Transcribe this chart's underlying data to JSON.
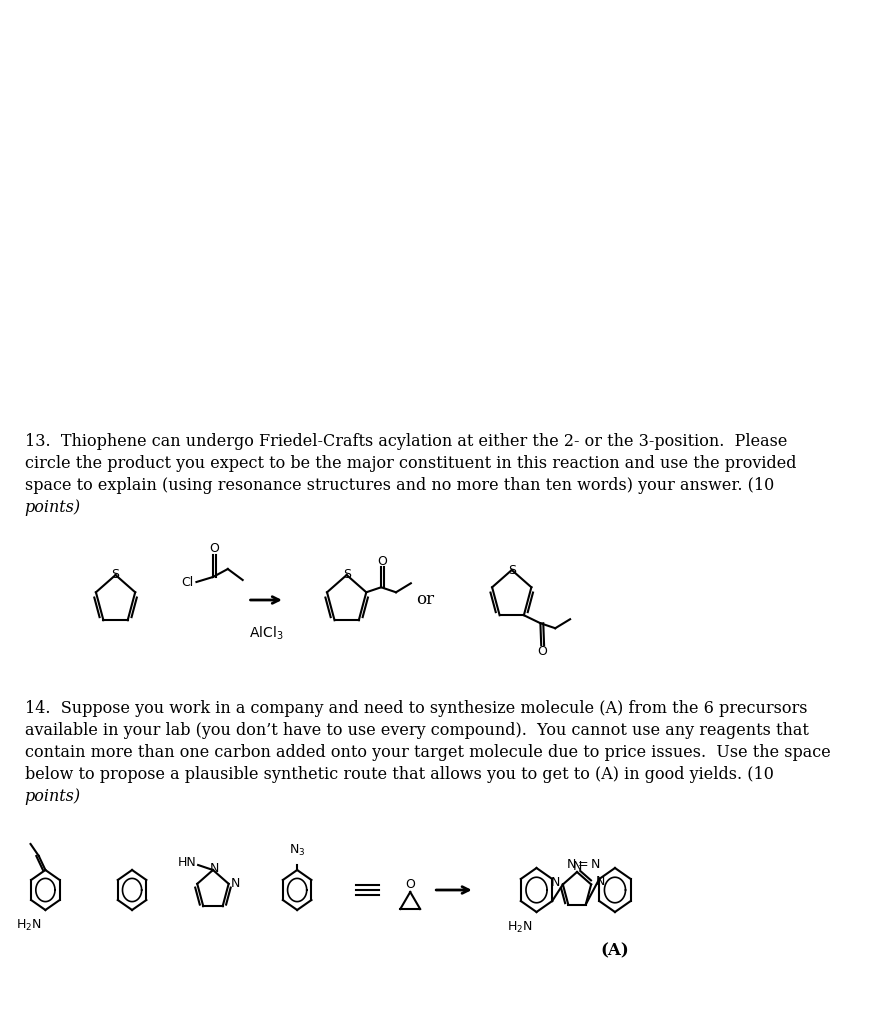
{
  "bg_color": "#ffffff",
  "text_color": "#000000",
  "figsize": [
    8.73,
    10.24
  ],
  "dpi": 100,
  "q13_line1": "13.  Thiophene can undergo Friedel-Crafts acylation at either the 2- or the 3-position.  Please",
  "q13_line2": "circle the product you expect to be the major constituent in this reaction and use the provided",
  "q13_line3": "space to explain (using resonance structures and no more than ten words) your answer. (10",
  "q13_line4": "points)",
  "q14_line1": "14.  Suppose you work in a company and need to synthesize molecule (A) from the 6 precursors",
  "q14_line2": "available in your lab (you don’t have to use every compound).  You cannot use any reagents that",
  "q14_line3": "contain more than one carbon added onto your target molecule due to price issues.  Use the space",
  "q14_line4": "below to propose a plausible synthetic route that allows you to get to (A) in good yields. (10",
  "q14_line5": "points)",
  "alcl3_label": "AlCl$_3$",
  "or_text": "or",
  "A_label": "(A)"
}
